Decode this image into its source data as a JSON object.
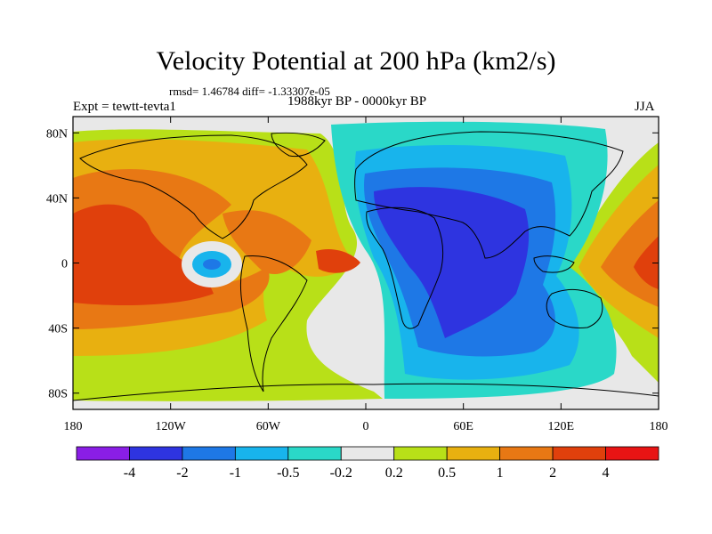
{
  "title": "Velocity Potential at 200 hPa (km2/s)",
  "stats_text": "rmsd= 1.46784 diff= -1.33307e-05",
  "left_string": "Expt = tewtt-tevta1",
  "center_string": "1988kyr BP - 0000kyr BP",
  "right_string": "JJA",
  "map": {
    "projection": "cylindrical-equidistant",
    "lon_range": [
      -180,
      180
    ],
    "lat_range": [
      -90,
      90
    ],
    "lat_tick_labels": [
      "80N",
      "40N",
      "0",
      "40S",
      "80S"
    ],
    "lon_tick_labels": [
      "180",
      "120W",
      "60W",
      "0",
      "60E",
      "120E",
      "180"
    ],
    "land_outline_color": "#000000"
  },
  "colorbar": {
    "colors": [
      "#8a1ee6",
      "#2e34e0",
      "#1e78e6",
      "#18b4ec",
      "#2ad8c8",
      "#e8e8e8",
      "#b8e018",
      "#e8b010",
      "#e87814",
      "#e0400c",
      "#e81414"
    ],
    "labels": [
      "-4",
      "-2",
      "-1",
      "-0.5",
      "-0.2",
      "0.2",
      "0.5",
      "1",
      "2",
      "4"
    ]
  }
}
